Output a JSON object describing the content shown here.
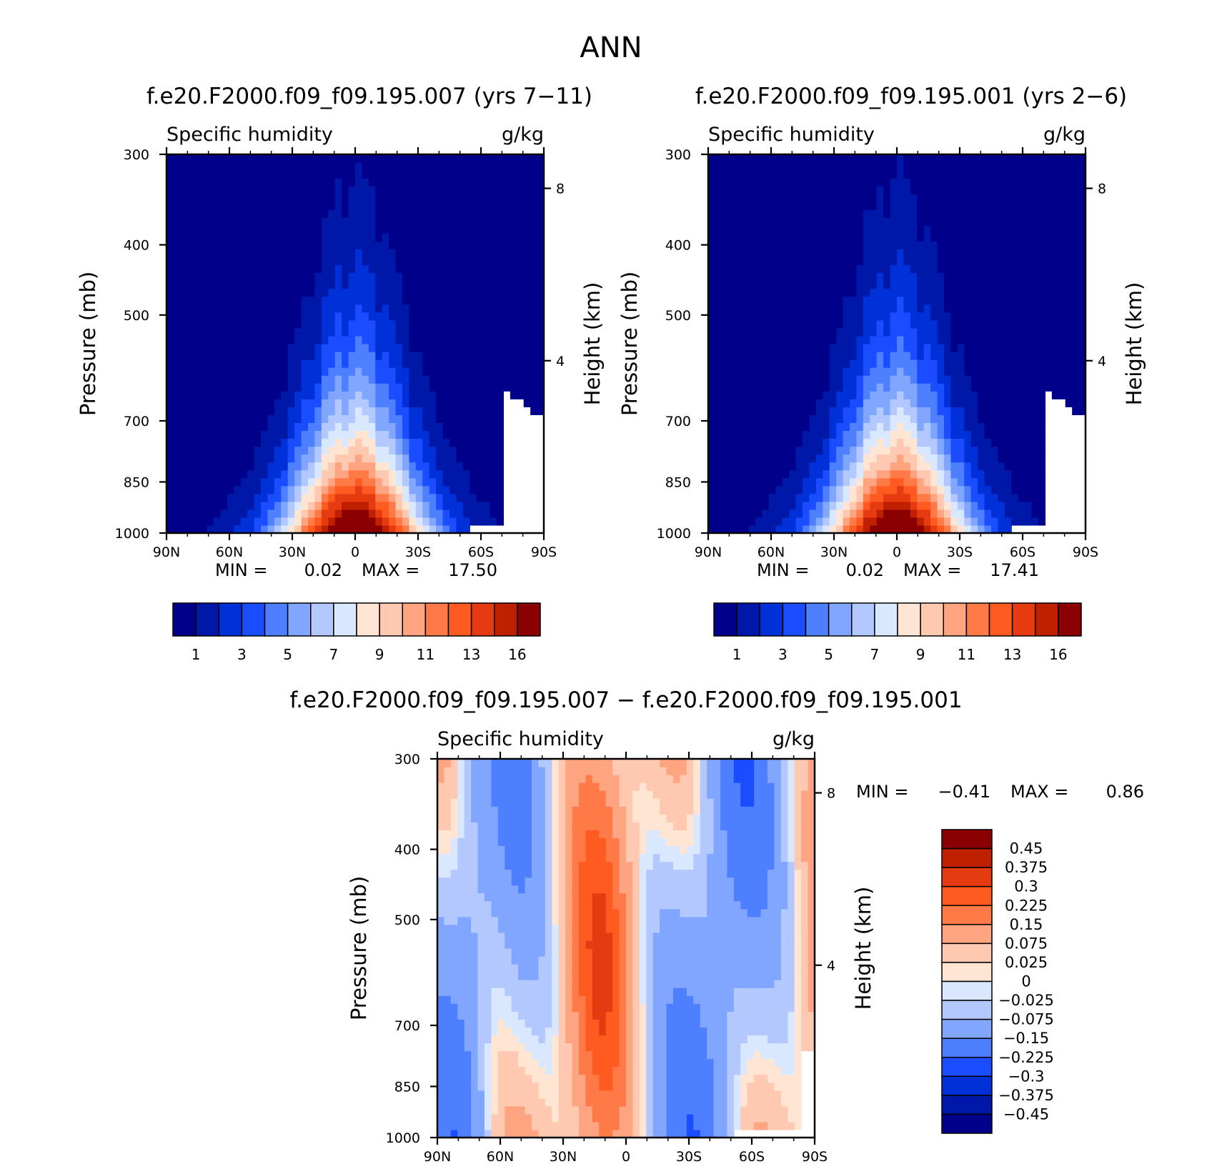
{
  "page_title": "ANN",
  "colors": {
    "abs_levels": [
      "#00008b",
      "#0018a8",
      "#0030d8",
      "#1a4dff",
      "#4d7fff",
      "#80a6ff",
      "#b3c8ff",
      "#d9e8ff",
      "#ffe5d2",
      "#ffc8b0",
      "#ffa481",
      "#ff7a47",
      "#ff5a20",
      "#e63a10",
      "#bf2000",
      "#8b0000"
    ],
    "diff_levels": [
      "#00008b",
      "#0018a8",
      "#0030d8",
      "#1a4dff",
      "#4d7fff",
      "#80a6ff",
      "#b3c8ff",
      "#d9e8ff",
      "#ffe5d2",
      "#ffc8b0",
      "#ffa481",
      "#ff7a47",
      "#ff5a20",
      "#e63a10",
      "#bf2000",
      "#8b0000"
    ]
  },
  "chart_data": [
    {
      "type": "contour",
      "title": "f.e20.F2000.f09_f09.195.007 (yrs 7−11)",
      "field_label": "Specific humidity",
      "units": "g/kg",
      "ylabel": "Pressure (mb)",
      "y2label": "Height (km)",
      "xticks": [
        "90N",
        "60N",
        "30N",
        "0",
        "30S",
        "60S",
        "90S"
      ],
      "yticks": [
        300,
        400,
        500,
        700,
        850,
        1000
      ],
      "y2ticks": [
        8,
        4
      ],
      "xlim": [
        90,
        -90
      ],
      "ylim": [
        1000,
        300
      ],
      "yscale": "log",
      "min_label": "MIN =",
      "min_value": "0.02",
      "max_label": "MAX =",
      "max_value": "17.50",
      "max": 17.5,
      "colorbar_labels": [
        "1",
        "3",
        "5",
        "7",
        "9",
        "11",
        "13",
        "16"
      ]
    },
    {
      "type": "contour",
      "title": "f.e20.F2000.f09_f09.195.001 (yrs 2−6)",
      "field_label": "Specific humidity",
      "units": "g/kg",
      "ylabel": "Pressure (mb)",
      "y2label": "Height (km)",
      "xticks": [
        "90N",
        "60N",
        "30N",
        "0",
        "30S",
        "60S",
        "90S"
      ],
      "yticks": [
        300,
        400,
        500,
        700,
        850,
        1000
      ],
      "y2ticks": [
        8,
        4
      ],
      "xlim": [
        90,
        -90
      ],
      "ylim": [
        1000,
        300
      ],
      "yscale": "log",
      "min_label": "MIN =",
      "min_value": "0.02",
      "max_label": "MAX =",
      "max_value": "17.41",
      "max": 17.41,
      "colorbar_labels": [
        "1",
        "3",
        "5",
        "7",
        "9",
        "11",
        "13",
        "16"
      ]
    },
    {
      "type": "contour",
      "title": "f.e20.F2000.f09_f09.195.007 − f.e20.F2000.f09_f09.195.001",
      "field_label": "Specific humidity",
      "units": "g/kg",
      "ylabel": "Pressure (mb)",
      "y2label": "Height (km)",
      "xticks": [
        "90N",
        "60N",
        "30N",
        "0",
        "30S",
        "60S",
        "90S"
      ],
      "yticks": [
        300,
        400,
        500,
        700,
        850,
        1000
      ],
      "y2ticks": [
        8,
        4
      ],
      "xlim": [
        90,
        -90
      ],
      "ylim": [
        1000,
        300
      ],
      "yscale": "log",
      "min_label": "MIN =",
      "min_value": "−0.41",
      "max_label": "MAX =",
      "max_value": "0.86",
      "colorbar_labels": [
        "0.45",
        "0.375",
        "0.3",
        "0.225",
        "0.15",
        "0.075",
        "0.025",
        "0",
        "−0.025",
        "−0.075",
        "−0.15",
        "−0.225",
        "−0.3",
        "−0.375",
        "−0.45"
      ]
    }
  ]
}
